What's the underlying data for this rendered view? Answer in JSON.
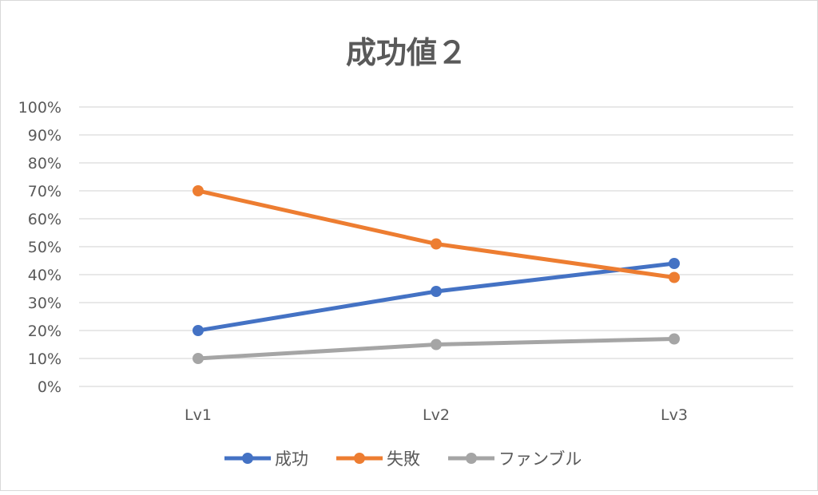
{
  "chart_data": {
    "type": "line",
    "title": "成功値２",
    "categories": [
      "Lv1",
      "Lv2",
      "Lv3"
    ],
    "ylim": [
      0,
      100
    ],
    "yticks": [
      "0%",
      "10%",
      "20%",
      "30%",
      "40%",
      "50%",
      "60%",
      "70%",
      "80%",
      "90%",
      "100%"
    ],
    "grid": true,
    "legend_position": "bottom",
    "series": [
      {
        "name": "成功",
        "color": "#4472C4",
        "values": [
          20,
          34,
          44
        ]
      },
      {
        "name": "失敗",
        "color": "#ED7D31",
        "values": [
          70,
          51,
          39
        ]
      },
      {
        "name": "ファンブル",
        "color": "#A5A5A5",
        "values": [
          10,
          15,
          17
        ]
      }
    ]
  }
}
